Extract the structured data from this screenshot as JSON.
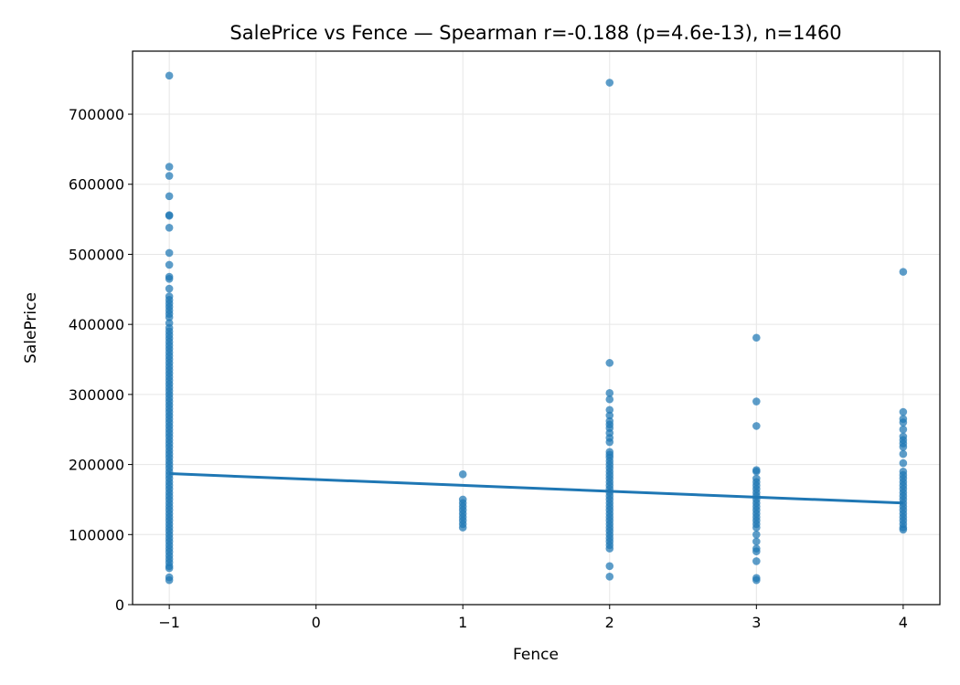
{
  "chart_data": {
    "type": "scatter",
    "title": "SalePrice vs Fence — Spearman r=-0.188 (p=4.6e-13), n=1460",
    "xlabel": "Fence",
    "ylabel": "SalePrice",
    "xlim": [
      -1.25,
      4.25
    ],
    "ylim": [
      0,
      790000
    ],
    "xticks": [
      -1,
      0,
      1,
      2,
      3,
      4
    ],
    "xtick_labels": [
      "−1",
      "0",
      "1",
      "2",
      "3",
      "4"
    ],
    "yticks": [
      0,
      100000,
      200000,
      300000,
      400000,
      500000,
      600000,
      700000
    ],
    "ytick_labels": [
      "0",
      "100000",
      "200000",
      "300000",
      "400000",
      "500000",
      "600000",
      "700000"
    ],
    "grid": true,
    "point_color": "#1f77b4",
    "line_color": "#1f77b4",
    "series": [
      {
        "kind": "points",
        "points": [
          [
            -1,
            755000
          ],
          [
            -1,
            625000
          ],
          [
            -1,
            612000
          ],
          [
            -1,
            583000
          ],
          [
            -1,
            556000
          ],
          [
            -1,
            555000
          ],
          [
            -1,
            538000
          ],
          [
            -1,
            502000
          ],
          [
            -1,
            485000
          ],
          [
            -1,
            468000
          ],
          [
            -1,
            465000
          ],
          [
            -1,
            451000
          ],
          [
            -1,
            440000
          ],
          [
            -1,
            435000
          ],
          [
            -1,
            430000
          ],
          [
            -1,
            425000
          ],
          [
            -1,
            420000
          ],
          [
            -1,
            415000
          ],
          [
            -1,
            410000
          ],
          [
            -1,
            402000
          ],
          [
            -1,
            395000
          ],
          [
            -1,
            390000
          ],
          [
            -1,
            385000
          ],
          [
            -1,
            380000
          ],
          [
            -1,
            375000
          ],
          [
            -1,
            370000
          ],
          [
            -1,
            365000
          ],
          [
            -1,
            360000
          ],
          [
            -1,
            355000
          ],
          [
            -1,
            350000
          ],
          [
            -1,
            345000
          ],
          [
            -1,
            340000
          ],
          [
            -1,
            335000
          ],
          [
            -1,
            330000
          ],
          [
            -1,
            325000
          ],
          [
            -1,
            320000
          ],
          [
            -1,
            315000
          ],
          [
            -1,
            310000
          ],
          [
            -1,
            305000
          ],
          [
            -1,
            300000
          ],
          [
            -1,
            295000
          ],
          [
            -1,
            290000
          ],
          [
            -1,
            285000
          ],
          [
            -1,
            280000
          ],
          [
            -1,
            275000
          ],
          [
            -1,
            270000
          ],
          [
            -1,
            265000
          ],
          [
            -1,
            260000
          ],
          [
            -1,
            255000
          ],
          [
            -1,
            250000
          ],
          [
            -1,
            245000
          ],
          [
            -1,
            240000
          ],
          [
            -1,
            235000
          ],
          [
            -1,
            230000
          ],
          [
            -1,
            225000
          ],
          [
            -1,
            220000
          ],
          [
            -1,
            215000
          ],
          [
            -1,
            210000
          ],
          [
            -1,
            205000
          ],
          [
            -1,
            200000
          ],
          [
            -1,
            195000
          ],
          [
            -1,
            190000
          ],
          [
            -1,
            185000
          ],
          [
            -1,
            180000
          ],
          [
            -1,
            175000
          ],
          [
            -1,
            170000
          ],
          [
            -1,
            165000
          ],
          [
            -1,
            160000
          ],
          [
            -1,
            155000
          ],
          [
            -1,
            150000
          ],
          [
            -1,
            145000
          ],
          [
            -1,
            140000
          ],
          [
            -1,
            135000
          ],
          [
            -1,
            130000
          ],
          [
            -1,
            125000
          ],
          [
            -1,
            120000
          ],
          [
            -1,
            115000
          ],
          [
            -1,
            110000
          ],
          [
            -1,
            105000
          ],
          [
            -1,
            100000
          ],
          [
            -1,
            95000
          ],
          [
            -1,
            90000
          ],
          [
            -1,
            85000
          ],
          [
            -1,
            80000
          ],
          [
            -1,
            75000
          ],
          [
            -1,
            70000
          ],
          [
            -1,
            65000
          ],
          [
            -1,
            60000
          ],
          [
            -1,
            55000
          ],
          [
            -1,
            52000
          ],
          [
            -1,
            39000
          ],
          [
            -1,
            35000
          ],
          [
            1,
            186000
          ],
          [
            1,
            150000
          ],
          [
            1,
            145000
          ],
          [
            1,
            140000
          ],
          [
            1,
            135000
          ],
          [
            1,
            130000
          ],
          [
            1,
            125000
          ],
          [
            1,
            120000
          ],
          [
            1,
            115000
          ],
          [
            1,
            110000
          ],
          [
            2,
            745000
          ],
          [
            2,
            345000
          ],
          [
            2,
            302000
          ],
          [
            2,
            293000
          ],
          [
            2,
            278000
          ],
          [
            2,
            270000
          ],
          [
            2,
            262000
          ],
          [
            2,
            257000
          ],
          [
            2,
            252000
          ],
          [
            2,
            245000
          ],
          [
            2,
            238000
          ],
          [
            2,
            232000
          ],
          [
            2,
            218000
          ],
          [
            2,
            214000
          ],
          [
            2,
            210000
          ],
          [
            2,
            205000
          ],
          [
            2,
            200000
          ],
          [
            2,
            195000
          ],
          [
            2,
            190000
          ],
          [
            2,
            185000
          ],
          [
            2,
            180000
          ],
          [
            2,
            175000
          ],
          [
            2,
            170000
          ],
          [
            2,
            165000
          ],
          [
            2,
            160000
          ],
          [
            2,
            155000
          ],
          [
            2,
            150000
          ],
          [
            2,
            145000
          ],
          [
            2,
            140000
          ],
          [
            2,
            135000
          ],
          [
            2,
            130000
          ],
          [
            2,
            125000
          ],
          [
            2,
            120000
          ],
          [
            2,
            115000
          ],
          [
            2,
            110000
          ],
          [
            2,
            105000
          ],
          [
            2,
            100000
          ],
          [
            2,
            95000
          ],
          [
            2,
            90000
          ],
          [
            2,
            85000
          ],
          [
            2,
            80000
          ],
          [
            2,
            55000
          ],
          [
            2,
            40000
          ],
          [
            3,
            381000
          ],
          [
            3,
            290000
          ],
          [
            3,
            255000
          ],
          [
            3,
            192000
          ],
          [
            3,
            190000
          ],
          [
            3,
            180000
          ],
          [
            3,
            175000
          ],
          [
            3,
            170000
          ],
          [
            3,
            165000
          ],
          [
            3,
            160000
          ],
          [
            3,
            155000
          ],
          [
            3,
            150000
          ],
          [
            3,
            145000
          ],
          [
            3,
            140000
          ],
          [
            3,
            135000
          ],
          [
            3,
            130000
          ],
          [
            3,
            125000
          ],
          [
            3,
            120000
          ],
          [
            3,
            115000
          ],
          [
            3,
            110000
          ],
          [
            3,
            100000
          ],
          [
            3,
            90000
          ],
          [
            3,
            80000
          ],
          [
            3,
            76000
          ],
          [
            3,
            62000
          ],
          [
            3,
            38000
          ],
          [
            3,
            35000
          ],
          [
            4,
            475000
          ],
          [
            4,
            275000
          ],
          [
            4,
            265000
          ],
          [
            4,
            260000
          ],
          [
            4,
            250000
          ],
          [
            4,
            240000
          ],
          [
            4,
            235000
          ],
          [
            4,
            230000
          ],
          [
            4,
            225000
          ],
          [
            4,
            215000
          ],
          [
            4,
            202000
          ],
          [
            4,
            190000
          ],
          [
            4,
            185000
          ],
          [
            4,
            180000
          ],
          [
            4,
            175000
          ],
          [
            4,
            170000
          ],
          [
            4,
            165000
          ],
          [
            4,
            160000
          ],
          [
            4,
            155000
          ],
          [
            4,
            150000
          ],
          [
            4,
            145000
          ],
          [
            4,
            140000
          ],
          [
            4,
            135000
          ],
          [
            4,
            130000
          ],
          [
            4,
            125000
          ],
          [
            4,
            120000
          ],
          [
            4,
            115000
          ],
          [
            4,
            110000
          ],
          [
            4,
            107000
          ]
        ]
      },
      {
        "kind": "regression-line",
        "x": [
          -1,
          4
        ],
        "y": [
          187000,
          145000
        ]
      }
    ]
  }
}
